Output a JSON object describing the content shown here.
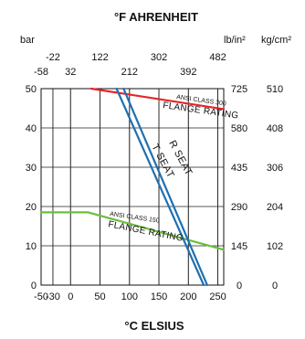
{
  "chart_data": {
    "type": "line",
    "title_top": "°F AHRENHEIT",
    "title_bottom": "°C ELSIUS",
    "units": {
      "left": "bar",
      "right_psi": "lb/in²",
      "right_kg": "kg/cm²"
    },
    "x_celsius": {
      "ticks": [
        -50,
        -30,
        0,
        50,
        100,
        150,
        200,
        250
      ],
      "range": [
        -50,
        260
      ]
    },
    "x_fahrenheit": {
      "row1": [
        -22,
        122,
        302,
        482
      ],
      "row2": [
        -58,
        32,
        212,
        392
      ]
    },
    "y_bar": {
      "ticks": [
        0,
        10,
        20,
        30,
        40,
        50
      ],
      "range": [
        0,
        50
      ]
    },
    "y_psi_ticks": [
      "0",
      "145",
      "290",
      "435",
      "580",
      "725"
    ],
    "y_kg_ticks": [
      "0",
      "102",
      "204",
      "306",
      "408",
      "510"
    ],
    "series": [
      {
        "color": "#e8232a",
        "points": [
          [
            35,
            50
          ],
          [
            260,
            44.8
          ]
        ]
      },
      {
        "color": "#6bbf3c",
        "points": [
          [
            -50,
            18.5
          ],
          [
            30,
            18.5
          ],
          [
            260,
            9.0
          ]
        ]
      },
      {
        "color": "#1f6fb0",
        "points": [
          [
            90,
            50
          ],
          [
            232,
            0
          ]
        ]
      },
      {
        "color": "#1f6fb0",
        "points": [
          [
            78,
            50
          ],
          [
            226,
            0
          ]
        ]
      }
    ],
    "annotations": {
      "class300_small": "ANSI CLASS 300",
      "class300_big": "FLANGE RATING",
      "class150_small": "ANSI CLASS 150",
      "class150_big": "FLANGE RATING",
      "rseat": "R SEAT",
      "tseat": "T SEAT"
    },
    "grid": true
  }
}
